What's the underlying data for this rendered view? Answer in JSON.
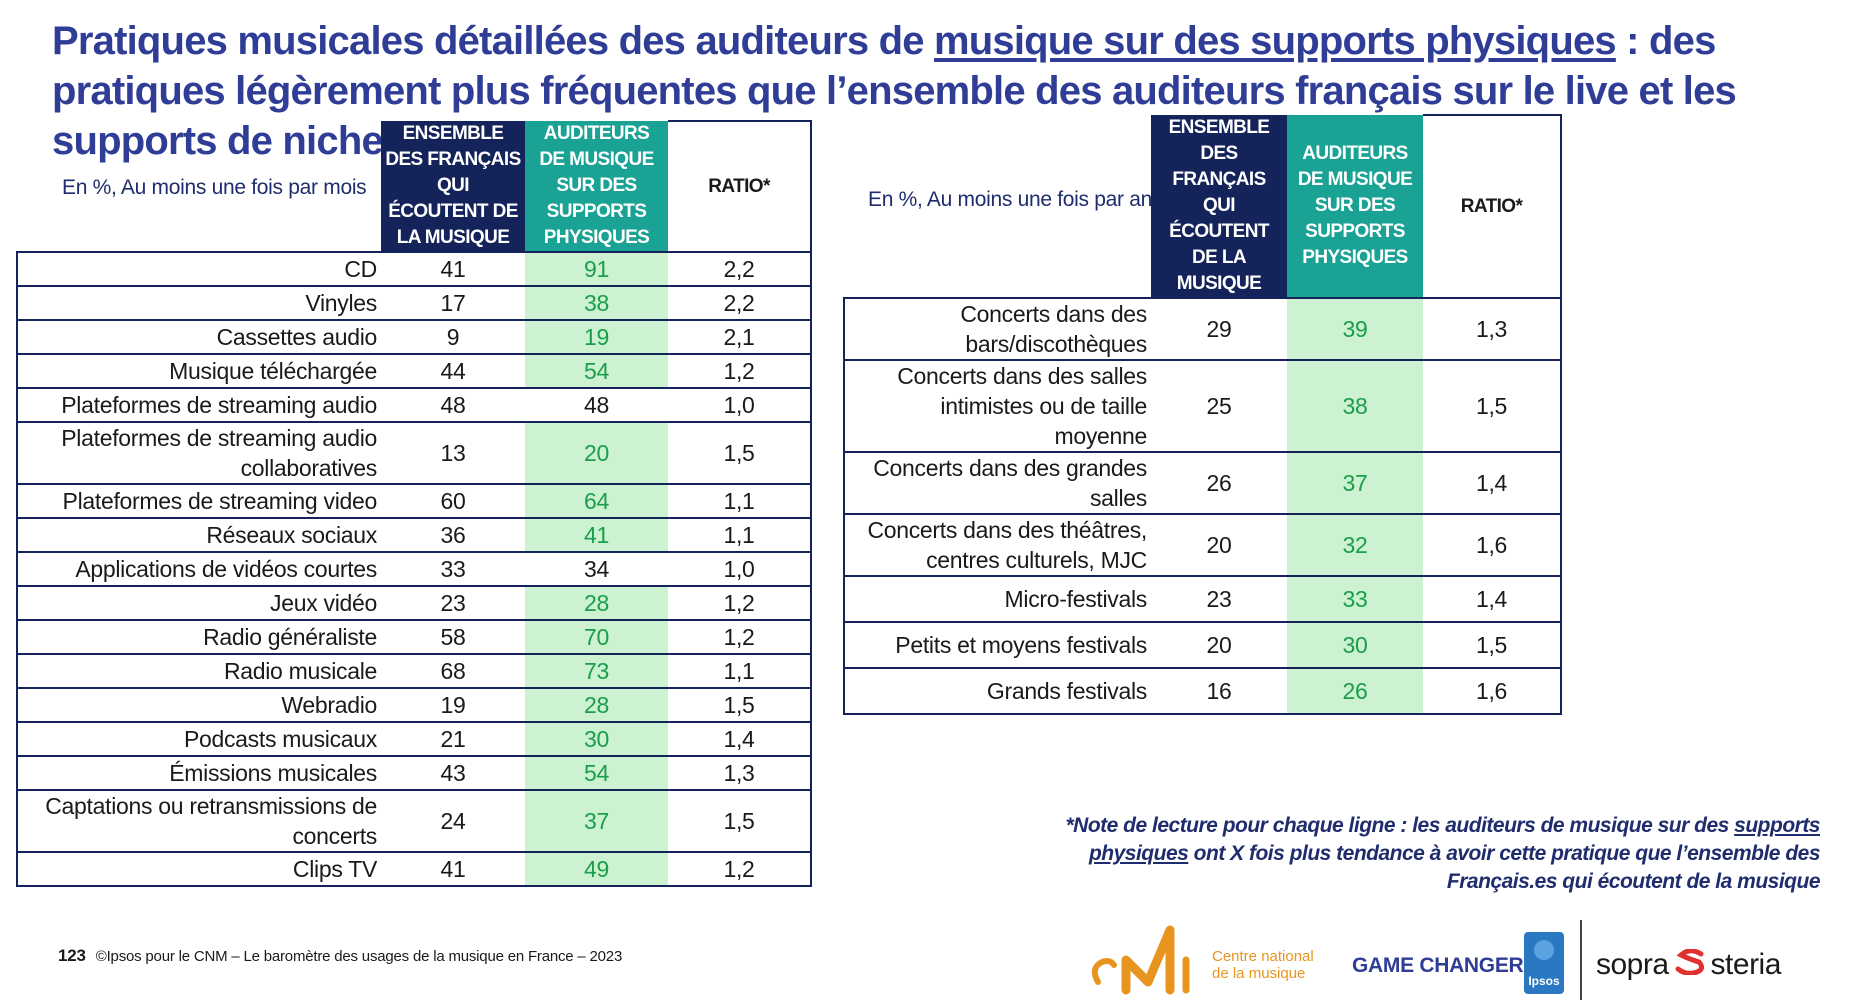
{
  "title": {
    "part1": "Pratiques musicales détaillées des auditeurs de ",
    "underlined": "musique sur des supports physiques",
    "part2": " : des pratiques légèrement plus fréquentes que l’ensemble des auditeurs français sur le live et les supports de niche"
  },
  "left_table": {
    "caption": "En %, Au moins une fois par mois",
    "headers": {
      "francais": "ENSEMBLE DES FRANÇAIS QUI ÉCOUTENT DE LA MUSIQUE",
      "supports": "AUDITEURS DE MUSIQUE SUR DES SUPPORTS PHYSIQUES",
      "ratio": "RATIO*"
    },
    "rows": [
      {
        "label": "CD",
        "francais": "41",
        "supports": "91",
        "ratio": "2,2",
        "highlight": true
      },
      {
        "label": "Vinyles",
        "francais": "17",
        "supports": "38",
        "ratio": "2,2",
        "highlight": true
      },
      {
        "label": "Cassettes audio",
        "francais": "9",
        "supports": "19",
        "ratio": "2,1",
        "highlight": true
      },
      {
        "label": "Musique téléchargée",
        "francais": "44",
        "supports": "54",
        "ratio": "1,2",
        "highlight": true
      },
      {
        "label": "Plateformes de streaming audio",
        "francais": "48",
        "supports": "48",
        "ratio": "1,0",
        "highlight": false
      },
      {
        "label": "Plateformes de streaming audio collaboratives",
        "francais": "13",
        "supports": "20",
        "ratio": "1,5",
        "highlight": true
      },
      {
        "label": "Plateformes de streaming video",
        "francais": "60",
        "supports": "64",
        "ratio": "1,1",
        "highlight": true
      },
      {
        "label": "Réseaux sociaux",
        "francais": "36",
        "supports": "41",
        "ratio": "1,1",
        "highlight": true
      },
      {
        "label": "Applications de vidéos courtes",
        "francais": "33",
        "supports": "34",
        "ratio": "1,0",
        "highlight": false
      },
      {
        "label": "Jeux vidéo",
        "francais": "23",
        "supports": "28",
        "ratio": "1,2",
        "highlight": true
      },
      {
        "label": "Radio généraliste",
        "francais": "58",
        "supports": "70",
        "ratio": "1,2",
        "highlight": true
      },
      {
        "label": "Radio musicale",
        "francais": "68",
        "supports": "73",
        "ratio": "1,1",
        "highlight": true
      },
      {
        "label": "Webradio",
        "francais": "19",
        "supports": "28",
        "ratio": "1,5",
        "highlight": true
      },
      {
        "label": "Podcasts musicaux",
        "francais": "21",
        "supports": "30",
        "ratio": "1,4",
        "highlight": true
      },
      {
        "label": "Émissions musicales",
        "francais": "43",
        "supports": "54",
        "ratio": "1,3",
        "highlight": true
      },
      {
        "label": "Captations ou retransmissions de concerts",
        "francais": "24",
        "supports": "37",
        "ratio": "1,5",
        "highlight": true
      },
      {
        "label": "Clips TV",
        "francais": "41",
        "supports": "49",
        "ratio": "1,2",
        "highlight": true
      }
    ]
  },
  "right_table": {
    "caption": "En %, Au moins une fois par an",
    "headers": {
      "francais": "ENSEMBLE DES FRANÇAIS QUI ÉCOUTENT DE LA MUSIQUE",
      "supports": "AUDITEURS DE MUSIQUE SUR DES SUPPORTS PHYSIQUES",
      "ratio": "RATIO*"
    },
    "rows": [
      {
        "label": "Concerts dans des bars/discothèques",
        "francais": "29",
        "supports": "39",
        "ratio": "1,3",
        "highlight": true
      },
      {
        "label": "Concerts dans des salles intimistes ou de taille moyenne",
        "francais": "25",
        "supports": "38",
        "ratio": "1,5",
        "highlight": true
      },
      {
        "label": "Concerts dans des grandes salles",
        "francais": "26",
        "supports": "37",
        "ratio": "1,4",
        "highlight": true
      },
      {
        "label": "Concerts dans des théâtres, centres culturels, MJC",
        "francais": "20",
        "supports": "32",
        "ratio": "1,6",
        "highlight": true
      },
      {
        "label": "Micro-festivals",
        "francais": "23",
        "supports": "33",
        "ratio": "1,4",
        "highlight": true
      },
      {
        "label": "Petits et moyens festivals",
        "francais": "20",
        "supports": "30",
        "ratio": "1,5",
        "highlight": true
      },
      {
        "label": "Grands festivals",
        "francais": "16",
        "supports": "26",
        "ratio": "1,6",
        "highlight": true
      }
    ]
  },
  "note": {
    "part1": "*Note de lecture pour chaque ligne : les auditeurs de musique sur des ",
    "underlined": "supports physiques",
    "part2": " ont X fois plus tendance à avoir cette pratique que l’ensemble des Français.es qui écoutent de la musique"
  },
  "footer": {
    "page": "123",
    "text": "©Ipsos pour le CNM – Le baromètre des usages de la musique en France – 2023"
  },
  "logos": {
    "cnm_mark": "cNM",
    "cnm_line1": "Centre national",
    "cnm_line2": "de la musique",
    "game_changers": "GAME CHANGERS",
    "ipsos": "Ipsos",
    "sopra_left": "sopra",
    "sopra_right": "steria"
  },
  "colors": {
    "title": "#2f3d96",
    "header_dark": "#14245a",
    "header_teal": "#1aa394",
    "highlight_bg": "#ccf2d1",
    "highlight_text": "#1a9e4b",
    "cnm_orange": "#e8951f"
  }
}
